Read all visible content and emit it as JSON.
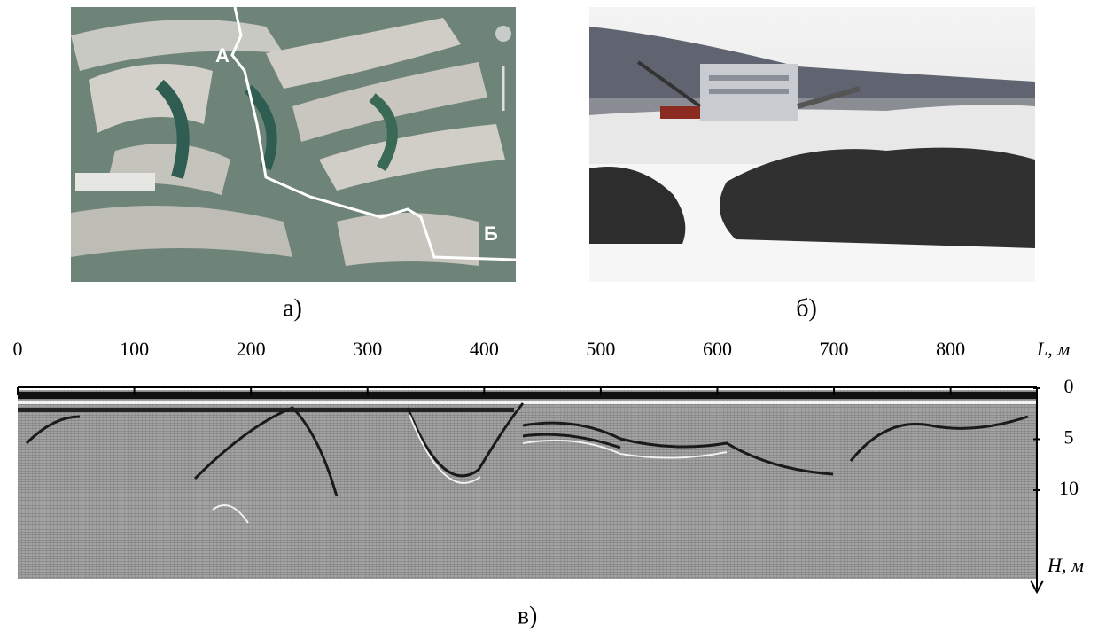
{
  "panel_a": {
    "label": "а)",
    "point_start": "А",
    "point_end": "Б"
  },
  "panel_b": {
    "label": "б)"
  },
  "panel_c": {
    "label": "в)",
    "x_axis": {
      "label": "L, м",
      "lim": [
        0,
        874
      ],
      "ticks": [
        0,
        100,
        200,
        300,
        400,
        500,
        600,
        700,
        800
      ]
    },
    "y_axis": {
      "label": "H, м",
      "lim": [
        0,
        18.7
      ],
      "ticks": [
        0,
        5,
        10
      ]
    }
  }
}
